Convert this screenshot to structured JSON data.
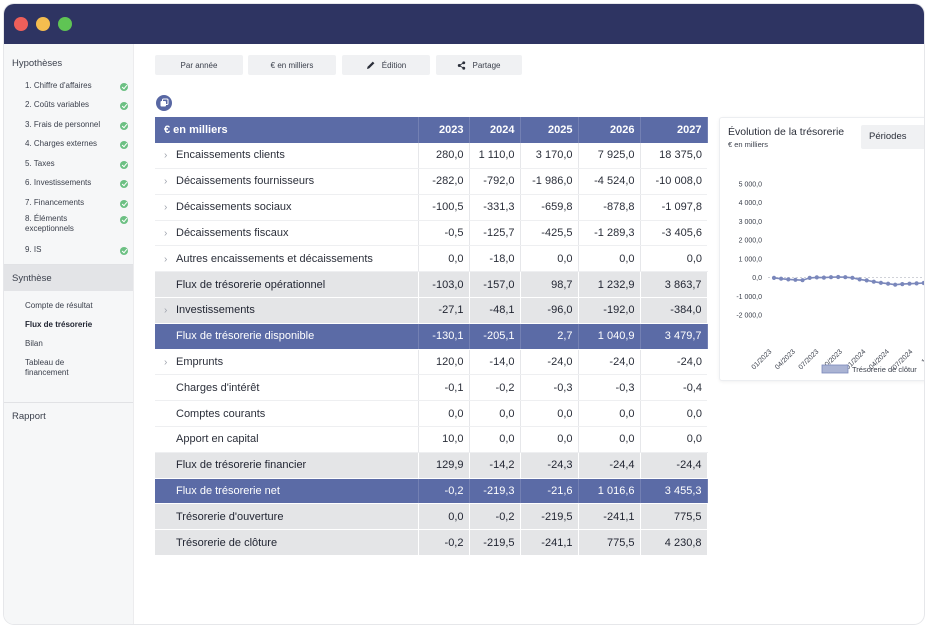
{
  "sidebar": {
    "hypotheses_title": "Hypothèses",
    "hypotheses_items": [
      {
        "label": "1. Chiffre d'affaires"
      },
      {
        "label": "2. Coûts variables"
      },
      {
        "label": "3. Frais de personnel"
      },
      {
        "label": "4. Charges externes"
      },
      {
        "label": "5. Taxes"
      },
      {
        "label": "6. Investissements"
      },
      {
        "label": "7. Financements"
      },
      {
        "label": "8. Éléments exceptionnels"
      },
      {
        "label": "9. IS"
      }
    ],
    "synthese_title": "Synthèse",
    "synthese_items": [
      {
        "label": "Compte de résultat"
      },
      {
        "label": "Flux de trésorerie"
      },
      {
        "label": "Bilan"
      },
      {
        "label": "Tableau de financement"
      }
    ],
    "rapport_title": "Rapport"
  },
  "toolbar": {
    "par_annee": "Par année",
    "en_milliers": "€ en milliers",
    "edition": "Édition",
    "partage": "Partage"
  },
  "table": {
    "header": {
      "label": "€ en milliers",
      "years": [
        "2023",
        "2024",
        "2025",
        "2026",
        "2027"
      ]
    },
    "rows": [
      {
        "label": "Encaissements clients",
        "values": [
          "280,0",
          "1 110,0",
          "3 170,0",
          "7 925,0",
          "18 375,0"
        ]
      },
      {
        "label": "Décaissements fournisseurs",
        "values": [
          "-282,0",
          "-792,0",
          "-1 986,0",
          "-4 524,0",
          "-10 008,0"
        ]
      },
      {
        "label": "Décaissements sociaux",
        "values": [
          "-100,5",
          "-331,3",
          "-659,8",
          "-878,8",
          "-1 097,8"
        ]
      },
      {
        "label": "Décaissements fiscaux",
        "values": [
          "-0,5",
          "-125,7",
          "-425,5",
          "-1 289,3",
          "-3 405,6"
        ]
      },
      {
        "label": "Autres encaissements et décaissements",
        "values": [
          "0,0",
          "-18,0",
          "0,0",
          "0,0",
          "0,0"
        ]
      },
      {
        "label": "Flux de trésorerie opérationnel",
        "values": [
          "-103,0",
          "-157,0",
          "98,7",
          "1 232,9",
          "3 863,7"
        ]
      },
      {
        "label": "Investissements",
        "values": [
          "-27,1",
          "-48,1",
          "-96,0",
          "-192,0",
          "-384,0"
        ]
      },
      {
        "label": "Flux de trésorerie disponible",
        "values": [
          "-130,1",
          "-205,1",
          "2,7",
          "1 040,9",
          "3 479,7"
        ]
      },
      {
        "label": "Emprunts",
        "values": [
          "120,0",
          "-14,0",
          "-24,0",
          "-24,0",
          "-24,0"
        ]
      },
      {
        "label": "Charges d'intérêt",
        "values": [
          "-0,1",
          "-0,2",
          "-0,3",
          "-0,3",
          "-0,4"
        ]
      },
      {
        "label": "Comptes courants",
        "values": [
          "0,0",
          "0,0",
          "0,0",
          "0,0",
          "0,0"
        ]
      },
      {
        "label": "Apport en capital",
        "values": [
          "10,0",
          "0,0",
          "0,0",
          "0,0",
          "0,0"
        ]
      },
      {
        "label": "Flux de trésorerie financier",
        "values": [
          "129,9",
          "-14,2",
          "-24,3",
          "-24,4",
          "-24,4"
        ]
      },
      {
        "label": "Flux de trésorerie net",
        "values": [
          "-0,2",
          "-219,3",
          "-21,6",
          "1 016,6",
          "3 455,3"
        ]
      },
      {
        "label": "Trésorerie d'ouverture",
        "values": [
          "0,0",
          "-0,2",
          "-219,5",
          "-241,1",
          "775,5"
        ]
      },
      {
        "label": "Trésorerie de clôture",
        "values": [
          "-0,2",
          "-219,5",
          "-241,1",
          "775,5",
          "4 230,8"
        ]
      }
    ]
  },
  "chart": {
    "title": "Évolution de la trésorerie",
    "subtitle": "€ en milliers",
    "periods_label": "Périodes",
    "legend_label": "Trésorerie de clôtur",
    "y_ticks": [
      "5 000,0",
      "4 000,0",
      "3 000,0",
      "2 000,0",
      "1 000,0",
      "0,0",
      "-1 000,0",
      "-2 000,0"
    ],
    "x_ticks": [
      "01/2023",
      "04/2023",
      "07/2023",
      "10/2023",
      "01/2024",
      "04/2024",
      "07/2024",
      "10/20"
    ]
  },
  "chart_data": {
    "type": "line",
    "title": "Évolution de la trésorerie",
    "subtitle": "€ en milliers",
    "ylim": [
      -2000,
      5000
    ],
    "y_ticks": [
      5000,
      4000,
      3000,
      2000,
      1000,
      0,
      -1000,
      -2000
    ],
    "x_ticks": [
      "01/2023",
      "04/2023",
      "07/2023",
      "10/2023",
      "01/2024",
      "04/2024",
      "07/2024",
      "10/20"
    ],
    "x": [
      "01/2023",
      "02/2023",
      "03/2023",
      "04/2023",
      "05/2023",
      "06/2023",
      "07/2023",
      "08/2023",
      "09/2023",
      "10/2023",
      "11/2023",
      "12/2023",
      "01/2024",
      "02/2024",
      "03/2024",
      "04/2024",
      "05/2024",
      "06/2024",
      "07/2024",
      "08/2024",
      "09/2024",
      "10/2024"
    ],
    "series": [
      {
        "name": "Trésorerie de clôtur",
        "values": [
          -20,
          -60,
          -100,
          -120,
          -140,
          -20,
          10,
          0,
          20,
          30,
          20,
          -10,
          -100,
          -150,
          -220,
          -280,
          -330,
          -380,
          -350,
          -330,
          -310,
          -290
        ]
      }
    ],
    "legend_placement": "bottom",
    "colors": {
      "series": "#7a87bb",
      "header": "#5b6ba6"
    }
  }
}
